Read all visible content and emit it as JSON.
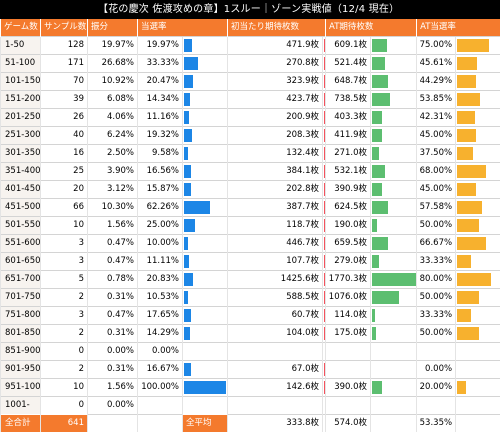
{
  "title": "【花の慶次 佐渡攻めの章】1スルー｜ゾーン実戦値（12/4 現在）",
  "headers": {
    "game": "ゲーム数",
    "samples": "サンプル数",
    "share": "振分",
    "hit_rate": "当選率",
    "exp_medals": "初当たり期待枚数",
    "at_exp": "AT期待枚数",
    "at_rate": "AT当選率"
  },
  "colors": {
    "header": "#f47a2d",
    "blue": "#1c86e6",
    "red": "#f4525d",
    "green": "#5cbe70",
    "yellow": "#f7b12e"
  },
  "rows": [
    {
      "game": "1-50",
      "samples": "128",
      "share": "19.97%",
      "hit_rate": "19.97%",
      "hit_val": 19.97,
      "exp": "471.9枚",
      "exp_val": 471.9,
      "at_exp": "609.1枚",
      "at_exp_val": 609.1,
      "at_rate": "75.00%",
      "at_rate_val": 75.0
    },
    {
      "game": "51-100",
      "samples": "171",
      "share": "26.68%",
      "hit_rate": "33.33%",
      "hit_val": 33.33,
      "exp": "270.8枚",
      "exp_val": 270.8,
      "at_exp": "521.4枚",
      "at_exp_val": 521.4,
      "at_rate": "45.61%",
      "at_rate_val": 45.61
    },
    {
      "game": "101-150",
      "samples": "70",
      "share": "10.92%",
      "hit_rate": "20.47%",
      "hit_val": 20.47,
      "exp": "323.9枚",
      "exp_val": 323.9,
      "at_exp": "648.7枚",
      "at_exp_val": 648.7,
      "at_rate": "44.29%",
      "at_rate_val": 44.29
    },
    {
      "game": "151-200",
      "samples": "39",
      "share": "6.08%",
      "hit_rate": "14.34%",
      "hit_val": 14.34,
      "exp": "423.7枚",
      "exp_val": 423.7,
      "at_exp": "738.5枚",
      "at_exp_val": 738.5,
      "at_rate": "53.85%",
      "at_rate_val": 53.85
    },
    {
      "game": "201-250",
      "samples": "26",
      "share": "4.06%",
      "hit_rate": "11.16%",
      "hit_val": 11.16,
      "exp": "200.9枚",
      "exp_val": 200.9,
      "at_exp": "403.3枚",
      "at_exp_val": 403.3,
      "at_rate": "42.31%",
      "at_rate_val": 42.31
    },
    {
      "game": "251-300",
      "samples": "40",
      "share": "6.24%",
      "hit_rate": "19.32%",
      "hit_val": 19.32,
      "exp": "208.3枚",
      "exp_val": 208.3,
      "at_exp": "411.9枚",
      "at_exp_val": 411.9,
      "at_rate": "45.00%",
      "at_rate_val": 45.0
    },
    {
      "game": "301-350",
      "samples": "16",
      "share": "2.50%",
      "hit_rate": "9.58%",
      "hit_val": 9.58,
      "exp": "132.4枚",
      "exp_val": 132.4,
      "at_exp": "271.0枚",
      "at_exp_val": 271.0,
      "at_rate": "37.50%",
      "at_rate_val": 37.5
    },
    {
      "game": "351-400",
      "samples": "25",
      "share": "3.90%",
      "hit_rate": "16.56%",
      "hit_val": 16.56,
      "exp": "384.1枚",
      "exp_val": 384.1,
      "at_exp": "532.1枚",
      "at_exp_val": 532.1,
      "at_rate": "68.00%",
      "at_rate_val": 68.0
    },
    {
      "game": "401-450",
      "samples": "20",
      "share": "3.12%",
      "hit_rate": "15.87%",
      "hit_val": 15.87,
      "exp": "202.8枚",
      "exp_val": 202.8,
      "at_exp": "390.9枚",
      "at_exp_val": 390.9,
      "at_rate": "45.00%",
      "at_rate_val": 45.0
    },
    {
      "game": "451-500",
      "samples": "66",
      "share": "10.30%",
      "hit_rate": "62.26%",
      "hit_val": 62.26,
      "exp": "387.7枚",
      "exp_val": 387.7,
      "at_exp": "624.5枚",
      "at_exp_val": 624.5,
      "at_rate": "57.58%",
      "at_rate_val": 57.58
    },
    {
      "game": "501-550",
      "samples": "10",
      "share": "1.56%",
      "hit_rate": "25.00%",
      "hit_val": 25.0,
      "exp": "118.7枚",
      "exp_val": 118.7,
      "at_exp": "190.0枚",
      "at_exp_val": 190.0,
      "at_rate": "50.00%",
      "at_rate_val": 50.0
    },
    {
      "game": "551-600",
      "samples": "3",
      "share": "0.47%",
      "hit_rate": "10.00%",
      "hit_val": 10.0,
      "exp": "446.7枚",
      "exp_val": 446.7,
      "at_exp": "659.5枚",
      "at_exp_val": 659.5,
      "at_rate": "66.67%",
      "at_rate_val": 66.67
    },
    {
      "game": "601-650",
      "samples": "3",
      "share": "0.47%",
      "hit_rate": "11.11%",
      "hit_val": 11.11,
      "exp": "107.7枚",
      "exp_val": 107.7,
      "at_exp": "279.0枚",
      "at_exp_val": 279.0,
      "at_rate": "33.33%",
      "at_rate_val": 33.33
    },
    {
      "game": "651-700",
      "samples": "5",
      "share": "0.78%",
      "hit_rate": "20.83%",
      "hit_val": 20.83,
      "exp": "1425.6枚",
      "exp_val": 1425.6,
      "at_exp": "1770.3枚",
      "at_exp_val": 1770.3,
      "at_rate": "80.00%",
      "at_rate_val": 80.0
    },
    {
      "game": "701-750",
      "samples": "2",
      "share": "0.31%",
      "hit_rate": "10.53%",
      "hit_val": 10.53,
      "exp": "588.5枚",
      "exp_val": 588.5,
      "at_exp": "1076.0枚",
      "at_exp_val": 1076.0,
      "at_rate": "50.00%",
      "at_rate_val": 50.0
    },
    {
      "game": "751-800",
      "samples": "3",
      "share": "0.47%",
      "hit_rate": "17.65%",
      "hit_val": 17.65,
      "exp": "60.7枚",
      "exp_val": 60.7,
      "at_exp": "114.0枚",
      "at_exp_val": 114.0,
      "at_rate": "33.33%",
      "at_rate_val": 33.33
    },
    {
      "game": "801-850",
      "samples": "2",
      "share": "0.31%",
      "hit_rate": "14.29%",
      "hit_val": 14.29,
      "exp": "104.0枚",
      "exp_val": 104.0,
      "at_exp": "175.0枚",
      "at_exp_val": 175.0,
      "at_rate": "50.00%",
      "at_rate_val": 50.0
    },
    {
      "game": "851-900",
      "samples": "0",
      "share": "0.00%",
      "hit_rate": "0.00%",
      "hit_val": 0,
      "exp": "",
      "exp_val": 0,
      "at_exp": "",
      "at_exp_val": 0,
      "at_rate": "",
      "at_rate_val": 0
    },
    {
      "game": "901-950",
      "samples": "2",
      "share": "0.31%",
      "hit_rate": "16.67%",
      "hit_val": 16.67,
      "exp": "67.0枚",
      "exp_val": 67.0,
      "at_exp": "",
      "at_exp_val": 0,
      "at_rate": "0.00%",
      "at_rate_val": 0
    },
    {
      "game": "951-1000",
      "samples": "10",
      "share": "1.56%",
      "hit_rate": "100.00%",
      "hit_val": 100.0,
      "exp": "142.6枚",
      "exp_val": 142.6,
      "at_exp": "390.0枚",
      "at_exp_val": 390.0,
      "at_rate": "20.00%",
      "at_rate_val": 20.0
    },
    {
      "game": "1001-",
      "samples": "0",
      "share": "0.00%",
      "hit_rate": "",
      "hit_val": 0,
      "exp": "",
      "exp_val": 0,
      "at_exp": "",
      "at_exp_val": 0,
      "at_rate": "",
      "at_rate_val": 0
    }
  ],
  "total": {
    "label": "全合計",
    "samples": "641",
    "avg_label": "全平均",
    "exp": "333.8枚",
    "at_exp": "574.0枚",
    "at_rate": "53.35%"
  },
  "bar_max": {
    "hit": 100,
    "exp": 1425.6,
    "at_exp": 1770.3,
    "at_rate": 100
  }
}
